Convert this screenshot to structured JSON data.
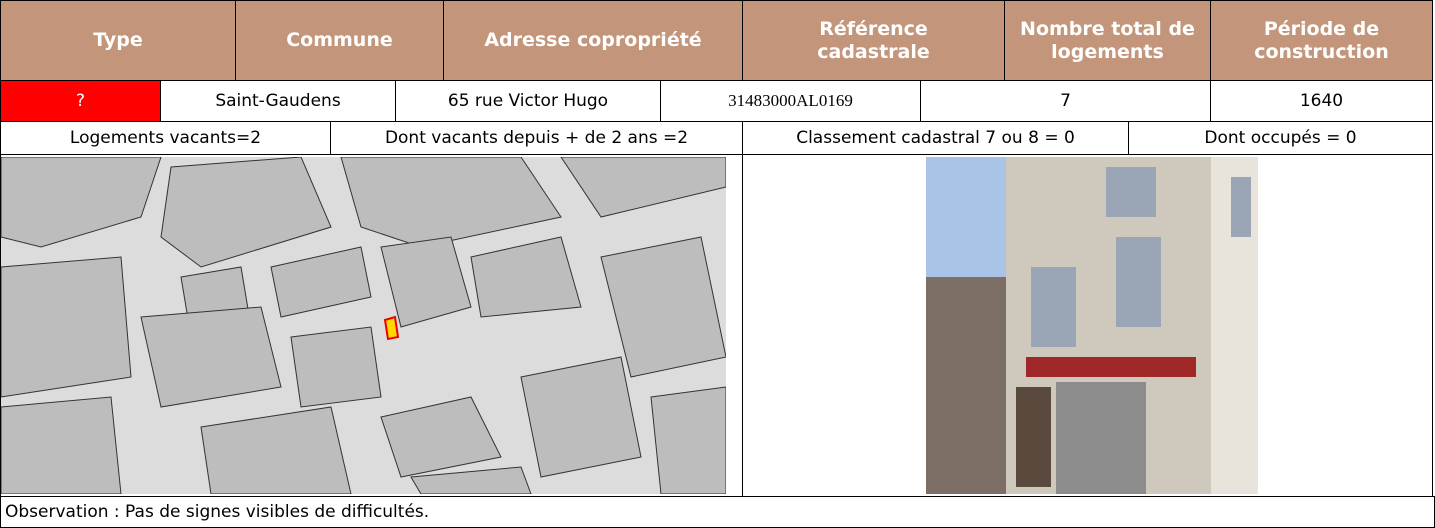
{
  "table": {
    "header": [
      "Type",
      "Commune",
      "Adresse copropriété",
      "Référence cadastrale",
      "Nombre total de logements",
      "Période de construction"
    ],
    "row": [
      "?",
      "Saint-Gaudens",
      "65 rue Victor Hugo",
      "31483000AL0169",
      "7",
      "1640"
    ],
    "stats": [
      "Logements vacants=2",
      "Dont vacants depuis + de 2 ans =2",
      "Classement cadastral 7 ou 8 = 0",
      "Dont occupés = 0"
    ]
  },
  "observation": "Observation : Pas de signes visibles de difficultés."
}
